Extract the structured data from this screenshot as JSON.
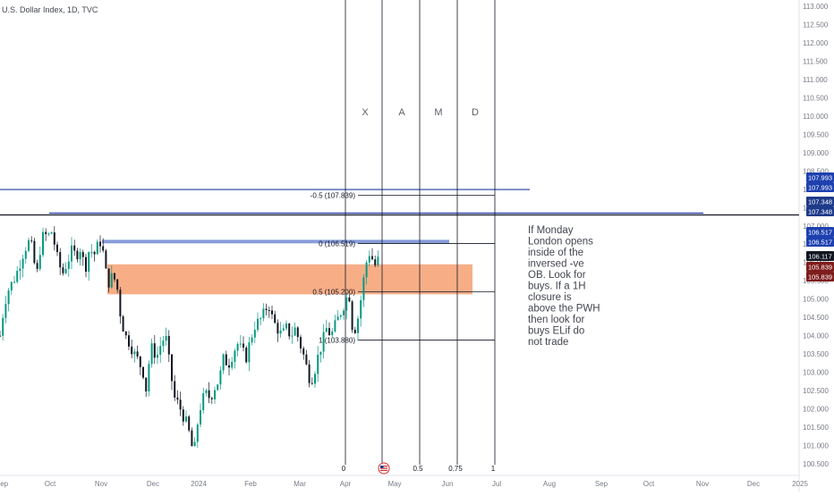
{
  "header": {
    "symbol_line": "U.S. Dollar Index, 1D, TVC"
  },
  "chart_data": {
    "type": "candlestick",
    "title": "U.S. Dollar Index, 1D, TVC",
    "y_axis": {
      "range": [
        100.4,
        113.1
      ],
      "ticks": [
        "100.500",
        "101.000",
        "101.500",
        "102.000",
        "102.500",
        "103.000",
        "103.500",
        "104.000",
        "104.500",
        "105.000",
        "105.500",
        "106.000",
        "106.500",
        "107.000",
        "107.500",
        "108.000",
        "108.500",
        "109.000",
        "109.500",
        "110.000",
        "110.500",
        "111.000",
        "111.500",
        "112.000",
        "112.500",
        "113.000"
      ]
    },
    "x_axis": {
      "labels": [
        "Sep",
        "Oct",
        "Nov",
        "Dec",
        "2024",
        "Feb",
        "Mar",
        "Apr",
        "May",
        "Jun",
        "Jul",
        "Aug",
        "Sep",
        "Oct",
        "Nov",
        "Dec",
        "2025"
      ]
    },
    "price_series": [
      {
        "t": 0,
        "v": 104.0
      },
      {
        "t": 5,
        "v": 104.9
      },
      {
        "t": 10,
        "v": 105.3
      },
      {
        "t": 15,
        "v": 105.5
      },
      {
        "t": 20,
        "v": 105.8
      },
      {
        "t": 25,
        "v": 106.2
      },
      {
        "t": 30,
        "v": 106.5
      },
      {
        "t": 34,
        "v": 106.6
      },
      {
        "t": 38,
        "v": 106.0
      },
      {
        "t": 42,
        "v": 105.7
      },
      {
        "t": 45,
        "v": 106.4
      },
      {
        "t": 50,
        "v": 106.9
      },
      {
        "t": 53,
        "v": 106.5
      },
      {
        "t": 56,
        "v": 107.0
      },
      {
        "t": 58,
        "v": 106.8
      },
      {
        "t": 61,
        "v": 106.5
      },
      {
        "t": 65,
        "v": 106.0
      },
      {
        "t": 70,
        "v": 105.7
      },
      {
        "t": 75,
        "v": 106.0
      },
      {
        "t": 80,
        "v": 106.3
      },
      {
        "t": 85,
        "v": 106.2
      },
      {
        "t": 90,
        "v": 106.4
      },
      {
        "t": 95,
        "v": 105.8
      },
      {
        "t": 100,
        "v": 106.4
      },
      {
        "t": 105,
        "v": 106.2
      },
      {
        "t": 110,
        "v": 106.5
      },
      {
        "t": 113,
        "v": 106.6
      },
      {
        "t": 117,
        "v": 106.0
      },
      {
        "t": 120,
        "v": 105.4
      },
      {
        "t": 125,
        "v": 105.6
      },
      {
        "t": 130,
        "v": 105.5
      },
      {
        "t": 135,
        "v": 104.5
      },
      {
        "t": 140,
        "v": 104.0
      },
      {
        "t": 145,
        "v": 103.8
      },
      {
        "t": 150,
        "v": 103.5
      },
      {
        "t": 155,
        "v": 103.3
      },
      {
        "t": 160,
        "v": 103.0
      },
      {
        "t": 163,
        "v": 102.5
      },
      {
        "t": 166,
        "v": 103.2
      },
      {
        "t": 170,
        "v": 103.7
      },
      {
        "t": 175,
        "v": 103.4
      },
      {
        "t": 180,
        "v": 103.8
      },
      {
        "t": 185,
        "v": 104.0
      },
      {
        "t": 190,
        "v": 103.1
      },
      {
        "t": 195,
        "v": 102.3
      },
      {
        "t": 200,
        "v": 102.1
      },
      {
        "t": 205,
        "v": 101.8
      },
      {
        "t": 210,
        "v": 101.5
      },
      {
        "t": 214,
        "v": 101.0
      },
      {
        "t": 217,
        "v": 100.8
      },
      {
        "t": 220,
        "v": 101.5
      },
      {
        "t": 225,
        "v": 102.2
      },
      {
        "t": 230,
        "v": 102.4
      },
      {
        "t": 235,
        "v": 102.3
      },
      {
        "t": 240,
        "v": 102.6
      },
      {
        "t": 245,
        "v": 102.8
      },
      {
        "t": 250,
        "v": 103.4
      },
      {
        "t": 255,
        "v": 103.2
      },
      {
        "t": 260,
        "v": 103.5
      },
      {
        "t": 265,
        "v": 103.8
      },
      {
        "t": 270,
        "v": 103.6
      },
      {
        "t": 275,
        "v": 103.4
      },
      {
        "t": 280,
        "v": 103.9
      },
      {
        "t": 285,
        "v": 104.3
      },
      {
        "t": 290,
        "v": 104.4
      },
      {
        "t": 295,
        "v": 104.6
      },
      {
        "t": 300,
        "v": 104.9
      },
      {
        "t": 305,
        "v": 104.4
      },
      {
        "t": 310,
        "v": 104.2
      },
      {
        "t": 315,
        "v": 104.0
      },
      {
        "t": 320,
        "v": 104.2
      },
      {
        "t": 325,
        "v": 104.0
      },
      {
        "t": 330,
        "v": 104.2
      },
      {
        "t": 335,
        "v": 103.8
      },
      {
        "t": 340,
        "v": 103.4
      },
      {
        "t": 345,
        "v": 102.9
      },
      {
        "t": 348,
        "v": 102.8
      },
      {
        "t": 352,
        "v": 103.1
      },
      {
        "t": 356,
        "v": 103.5
      },
      {
        "t": 360,
        "v": 103.8
      },
      {
        "t": 365,
        "v": 104.2
      },
      {
        "t": 370,
        "v": 104.0
      },
      {
        "t": 375,
        "v": 104.3
      },
      {
        "t": 380,
        "v": 104.6
      },
      {
        "t": 385,
        "v": 104.9
      },
      {
        "t": 390,
        "v": 105.2
      },
      {
        "t": 393,
        "v": 104.3
      },
      {
        "t": 397,
        "v": 104.2
      },
      {
        "t": 401,
        "v": 104.6
      },
      {
        "t": 405,
        "v": 105.3
      },
      {
        "t": 408,
        "v": 105.8
      },
      {
        "t": 411,
        "v": 106.2
      },
      {
        "t": 414,
        "v": 106.3
      },
      {
        "t": 417,
        "v": 106.0
      },
      {
        "t": 420,
        "v": 105.9
      },
      {
        "t": 423,
        "v": 106.1
      }
    ],
    "horizontal_lines": [
      {
        "price": 107.993,
        "color": "#1e3aa8",
        "tag": "107.993"
      },
      {
        "price": 107.348,
        "color": "#1e3aa8",
        "tag": "107.348"
      },
      {
        "price": 107.3,
        "color": "#131722"
      }
    ],
    "zones": [
      {
        "name": "blue-bar",
        "top": 106.62,
        "bottom": 106.55,
        "color": "#7b90d6"
      },
      {
        "name": "orange-zone",
        "top": 105.95,
        "bottom": 105.13,
        "color": "#f6a57a"
      }
    ],
    "fib_levels": [
      {
        "label": "-0.5 (107.839)",
        "price": 107.839
      },
      {
        "label": "0 (106.519)",
        "price": 106.519
      },
      {
        "label": "0.5 (105.200)",
        "price": 105.2
      },
      {
        "label": "1 (103.880)",
        "price": 103.88
      }
    ],
    "time_lines": [
      {
        "label": "X",
        "bottom_label": "0"
      },
      {
        "label": "A",
        "bottom_label": ""
      },
      {
        "label": "M",
        "bottom_label": "0.5"
      },
      {
        "label": "D",
        "bottom_label": "0.75"
      },
      {
        "label": "",
        "bottom_label": "1"
      }
    ],
    "price_tags": [
      {
        "text": "107.993",
        "color": "#1e40af",
        "price": 107.993
      },
      {
        "text": "107.993",
        "color": "#1e40af",
        "price": 107.993
      },
      {
        "text": "107.348",
        "color": "#1e3a8a",
        "price": 107.348
      },
      {
        "text": "107.348",
        "color": "#1e3a8a",
        "price": 107.348
      },
      {
        "text": "106.517",
        "color": "#1e40af",
        "price": 106.517
      },
      {
        "text": "106.517",
        "color": "#1e40af",
        "price": 106.517
      },
      {
        "text": "106.117",
        "color": "#131722",
        "price": 106.117
      },
      {
        "text": "105.839",
        "color": "#7f1d1d",
        "price": 105.839
      },
      {
        "text": "105.839",
        "color": "#7f1d1d",
        "price": 105.839
      }
    ],
    "note_lines": [
      "If Monday",
      "London opens",
      "inside of the",
      "inversed -ve",
      "OB. Look for",
      "buys. If a 1H",
      "closure is",
      "above the PWH",
      "then look for",
      "buys ELif do",
      "not trade"
    ],
    "colors": {
      "up": "#089981",
      "down": "#131722",
      "axis_text": "#787b86"
    }
  }
}
